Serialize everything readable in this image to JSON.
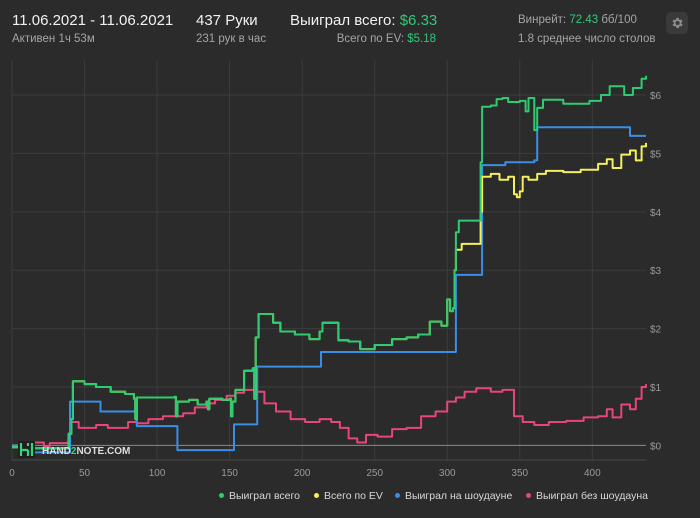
{
  "header": {
    "date_range": "11.06.2021 - 11.06.2021",
    "active": "Активен 1ч 53м",
    "hands": "437 Руки",
    "hands_per_hour": "231 рук в час",
    "won_total_label": "Выиграл всего:",
    "won_total_value": "$6.33",
    "ev_total_label": "Всего по EV:",
    "ev_total_value": "$5.18",
    "winrate_label": "Винрейт:",
    "winrate_value": "72.43",
    "winrate_unit": "бб/100",
    "tables": "1.8 среднее число столов",
    "settings_icon": "gear-icon"
  },
  "watermark": {
    "part1": "HAND",
    "part2": "2",
    "part3": "NOTE.COM"
  },
  "colors": {
    "won": "#2ecc71",
    "ev": "#f4f05a",
    "showdown": "#3a8ee6",
    "non_showdown": "#e8457a"
  },
  "chart_data": {
    "type": "line",
    "x_ticks": [
      "0",
      "50",
      "100",
      "150",
      "200",
      "250",
      "300",
      "350",
      "400"
    ],
    "y_ticks": [
      "$0",
      "$1",
      "$2",
      "$3",
      "$4",
      "$5",
      "$6"
    ],
    "xlim": [
      0,
      437
    ],
    "ylim": [
      -0.25,
      6.6
    ],
    "grid": true,
    "legend_position": "bottom-right",
    "series": [
      {
        "name": "Выиграл всего",
        "color": "#2ecc71",
        "points": [
          [
            0,
            -0.03
          ],
          [
            10,
            -0.05
          ],
          [
            30,
            -0.05
          ],
          [
            38,
            -0.05
          ],
          [
            39,
            0.2
          ],
          [
            41,
            0.45
          ],
          [
            42,
            1.1
          ],
          [
            50,
            1.05
          ],
          [
            58,
            1.0
          ],
          [
            68,
            0.92
          ],
          [
            78,
            0.88
          ],
          [
            84,
            0.8
          ],
          [
            85,
            0.45
          ],
          [
            86,
            0.82
          ],
          [
            100,
            0.82
          ],
          [
            112,
            0.83
          ],
          [
            113,
            0.5
          ],
          [
            114,
            0.75
          ],
          [
            122,
            0.78
          ],
          [
            128,
            0.7
          ],
          [
            134,
            0.75
          ],
          [
            135,
            0.62
          ],
          [
            136,
            0.8
          ],
          [
            145,
            0.78
          ],
          [
            150,
            0.8
          ],
          [
            151,
            0.5
          ],
          [
            152,
            0.75
          ],
          [
            154,
            0.95
          ],
          [
            160,
            1.28
          ],
          [
            166,
            1.32
          ],
          [
            167,
            0.8
          ],
          [
            168,
            1.85
          ],
          [
            170,
            2.25
          ],
          [
            180,
            2.1
          ],
          [
            185,
            1.95
          ],
          [
            195,
            1.9
          ],
          [
            205,
            1.82
          ],
          [
            212,
            1.95
          ],
          [
            214,
            2.1
          ],
          [
            220,
            2.1
          ],
          [
            225,
            1.8
          ],
          [
            232,
            1.78
          ],
          [
            240,
            1.65
          ],
          [
            250,
            1.72
          ],
          [
            262,
            1.82
          ],
          [
            272,
            1.85
          ],
          [
            280,
            1.9
          ],
          [
            288,
            2.12
          ],
          [
            296,
            2.05
          ],
          [
            300,
            2.5
          ],
          [
            302,
            2.3
          ],
          [
            304,
            2.35
          ],
          [
            305,
            3.0
          ],
          [
            306,
            3.65
          ],
          [
            308,
            3.85
          ],
          [
            322,
            3.85
          ],
          [
            323,
            4.85
          ],
          [
            324,
            5.8
          ],
          [
            330,
            5.82
          ],
          [
            334,
            5.93
          ],
          [
            338,
            5.95
          ],
          [
            342,
            5.88
          ],
          [
            350,
            5.9
          ],
          [
            354,
            5.72
          ],
          [
            356,
            5.95
          ],
          [
            360,
            5.4
          ],
          [
            362,
            5.78
          ],
          [
            366,
            5.92
          ],
          [
            380,
            5.85
          ],
          [
            398,
            5.9
          ],
          [
            406,
            6.0
          ],
          [
            412,
            6.15
          ],
          [
            418,
            6.15
          ],
          [
            422,
            6.0
          ],
          [
            428,
            6.12
          ],
          [
            434,
            6.28
          ],
          [
            437,
            6.33
          ]
        ]
      },
      {
        "name": "Всего по EV",
        "color": "#f4f05a",
        "points": [
          [
            0,
            -0.03
          ],
          [
            10,
            -0.05
          ],
          [
            30,
            -0.05
          ],
          [
            38,
            -0.05
          ],
          [
            39,
            0.2
          ],
          [
            41,
            0.45
          ],
          [
            42,
            1.1
          ],
          [
            50,
            1.05
          ],
          [
            58,
            1.0
          ],
          [
            68,
            0.92
          ],
          [
            78,
            0.88
          ],
          [
            84,
            0.8
          ],
          [
            85,
            0.45
          ],
          [
            86,
            0.82
          ],
          [
            100,
            0.82
          ],
          [
            112,
            0.83
          ],
          [
            113,
            0.5
          ],
          [
            114,
            0.75
          ],
          [
            122,
            0.78
          ],
          [
            128,
            0.7
          ],
          [
            134,
            0.75
          ],
          [
            135,
            0.62
          ],
          [
            136,
            0.8
          ],
          [
            145,
            0.78
          ],
          [
            150,
            0.8
          ],
          [
            151,
            0.5
          ],
          [
            152,
            0.75
          ],
          [
            154,
            0.95
          ],
          [
            160,
            1.28
          ],
          [
            166,
            1.32
          ],
          [
            167,
            0.8
          ],
          [
            168,
            1.85
          ],
          [
            170,
            2.25
          ],
          [
            180,
            2.1
          ],
          [
            185,
            1.95
          ],
          [
            195,
            1.9
          ],
          [
            205,
            1.82
          ],
          [
            212,
            1.95
          ],
          [
            214,
            2.1
          ],
          [
            220,
            2.1
          ],
          [
            225,
            1.8
          ],
          [
            232,
            1.78
          ],
          [
            240,
            1.65
          ],
          [
            250,
            1.72
          ],
          [
            262,
            1.82
          ],
          [
            272,
            1.85
          ],
          [
            280,
            1.9
          ],
          [
            288,
            2.12
          ],
          [
            296,
            2.05
          ],
          [
            300,
            2.5
          ],
          [
            302,
            2.3
          ],
          [
            304,
            2.35
          ],
          [
            305,
            3.0
          ],
          [
            306,
            3.35
          ],
          [
            310,
            3.45
          ],
          [
            322,
            3.45
          ],
          [
            323,
            4.0
          ],
          [
            324,
            4.6
          ],
          [
            330,
            4.65
          ],
          [
            336,
            4.55
          ],
          [
            342,
            4.6
          ],
          [
            346,
            4.3
          ],
          [
            348,
            4.25
          ],
          [
            350,
            4.35
          ],
          [
            352,
            4.6
          ],
          [
            356,
            4.55
          ],
          [
            362,
            4.65
          ],
          [
            368,
            4.7
          ],
          [
            380,
            4.68
          ],
          [
            392,
            4.72
          ],
          [
            404,
            4.82
          ],
          [
            410,
            4.9
          ],
          [
            414,
            4.75
          ],
          [
            420,
            4.98
          ],
          [
            426,
            5.05
          ],
          [
            430,
            4.88
          ],
          [
            434,
            5.12
          ],
          [
            437,
            5.18
          ]
        ]
      },
      {
        "name": "Выиграл на шоудауне",
        "color": "#3a8ee6",
        "points": [
          [
            0,
            0
          ],
          [
            8,
            -0.12
          ],
          [
            38,
            -0.12
          ],
          [
            40,
            0.75
          ],
          [
            60,
            0.75
          ],
          [
            61,
            0.58
          ],
          [
            84,
            0.58
          ],
          [
            86,
            0.33
          ],
          [
            113,
            0.33
          ],
          [
            114,
            -0.08
          ],
          [
            152,
            -0.08
          ],
          [
            153,
            0.36
          ],
          [
            167,
            0.36
          ],
          [
            169,
            1.35
          ],
          [
            212,
            1.35
          ],
          [
            213,
            1.6
          ],
          [
            305,
            1.6
          ],
          [
            306,
            2.92
          ],
          [
            322,
            2.92
          ],
          [
            324,
            4.8
          ],
          [
            340,
            4.85
          ],
          [
            360,
            4.88
          ],
          [
            362,
            5.45
          ],
          [
            424,
            5.45
          ],
          [
            426,
            5.3
          ],
          [
            437,
            5.3
          ]
        ]
      },
      {
        "name": "Выиграл без шоудауна",
        "color": "#e8457a",
        "points": [
          [
            0,
            0
          ],
          [
            8,
            0.05
          ],
          [
            22,
            -0.02
          ],
          [
            26,
            0.04
          ],
          [
            38,
            0.05
          ],
          [
            40,
            0.4
          ],
          [
            46,
            0.3
          ],
          [
            58,
            0.35
          ],
          [
            66,
            0.3
          ],
          [
            80,
            0.4
          ],
          [
            86,
            0.38
          ],
          [
            94,
            0.45
          ],
          [
            104,
            0.5
          ],
          [
            112,
            0.5
          ],
          [
            118,
            0.55
          ],
          [
            126,
            0.65
          ],
          [
            134,
            0.72
          ],
          [
            140,
            0.78
          ],
          [
            148,
            0.85
          ],
          [
            154,
            0.9
          ],
          [
            160,
            0.95
          ],
          [
            168,
            0.92
          ],
          [
            174,
            0.72
          ],
          [
            182,
            0.58
          ],
          [
            192,
            0.45
          ],
          [
            202,
            0.4
          ],
          [
            212,
            0.45
          ],
          [
            220,
            0.4
          ],
          [
            226,
            0.3
          ],
          [
            232,
            0.12
          ],
          [
            238,
            0.05
          ],
          [
            244,
            0.18
          ],
          [
            252,
            0.15
          ],
          [
            262,
            0.28
          ],
          [
            272,
            0.3
          ],
          [
            282,
            0.5
          ],
          [
            292,
            0.58
          ],
          [
            300,
            0.75
          ],
          [
            306,
            0.82
          ],
          [
            312,
            0.92
          ],
          [
            320,
            0.98
          ],
          [
            330,
            0.92
          ],
          [
            338,
            0.95
          ],
          [
            346,
            0.5
          ],
          [
            352,
            0.4
          ],
          [
            360,
            0.35
          ],
          [
            370,
            0.4
          ],
          [
            382,
            0.42
          ],
          [
            394,
            0.48
          ],
          [
            404,
            0.5
          ],
          [
            410,
            0.62
          ],
          [
            414,
            0.48
          ],
          [
            420,
            0.7
          ],
          [
            426,
            0.62
          ],
          [
            430,
            0.8
          ],
          [
            434,
            1.0
          ],
          [
            437,
            1.05
          ]
        ]
      }
    ]
  }
}
